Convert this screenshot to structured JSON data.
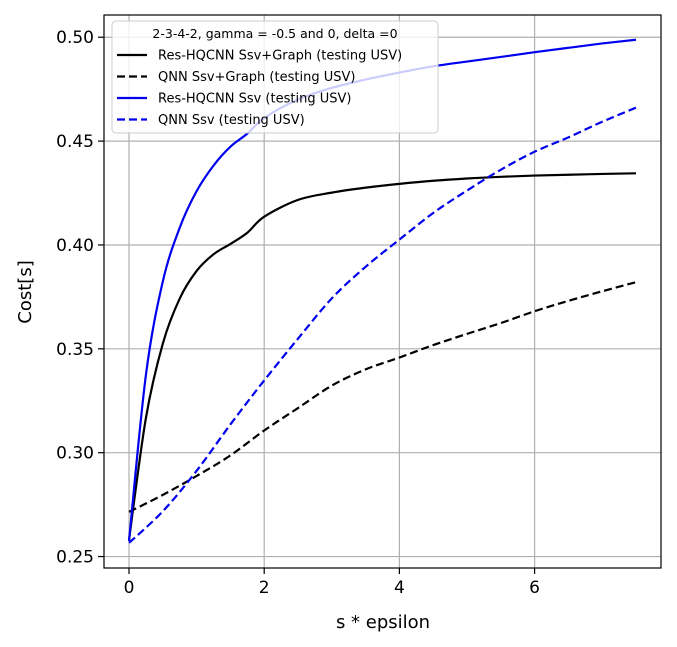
{
  "chart_data": {
    "type": "line",
    "xlabel": "s * epsilon",
    "ylabel": "Cost[s]",
    "xlim": [
      -0.37,
      7.87
    ],
    "ylim": [
      0.2445,
      0.5107
    ],
    "xticks": [
      0,
      2,
      4,
      6
    ],
    "xtick_labels": [
      "0",
      "2",
      "4",
      "6"
    ],
    "yticks": [
      0.25,
      0.3,
      0.35,
      0.4,
      0.45,
      0.5
    ],
    "ytick_labels": [
      "0.25",
      "0.30",
      "0.35",
      "0.40",
      "0.45",
      "0.50"
    ],
    "grid": true,
    "legend": {
      "title": "2-3-4-2, gamma = -0.5 and 0, delta =0",
      "placement": "upper-left"
    },
    "series": [
      {
        "name": "Res-HQCNN Ssv+Graph (testing USV)",
        "color": "#000000",
        "dash": "solid",
        "x": [
          0,
          0.25,
          0.5,
          0.75,
          1.0,
          1.25,
          1.5,
          1.75,
          2.0,
          2.5,
          3.0,
          3.5,
          4.0,
          4.5,
          5.0,
          5.5,
          6.0,
          6.5,
          7.0,
          7.5
        ],
        "y": [
          0.258,
          0.3167,
          0.3525,
          0.3742,
          0.3875,
          0.3955,
          0.4005,
          0.4059,
          0.4136,
          0.4217,
          0.4252,
          0.4276,
          0.4294,
          0.4309,
          0.432,
          0.4328,
          0.4334,
          0.4338,
          0.4342,
          0.4345
        ]
      },
      {
        "name": "QNN Ssv+Graph (testing USV)",
        "color": "#000000",
        "dash": "dashed",
        "x": [
          0,
          0.5,
          1.0,
          1.5,
          2.0,
          2.5,
          3.0,
          3.5,
          4.0,
          4.5,
          5.0,
          5.5,
          6.0,
          6.5,
          7.0,
          7.5
        ],
        "y": [
          0.2715,
          0.2797,
          0.2888,
          0.2987,
          0.3107,
          0.3215,
          0.3323,
          0.3401,
          0.3458,
          0.3518,
          0.3572,
          0.3624,
          0.3681,
          0.3731,
          0.3777,
          0.3821
        ]
      },
      {
        "name": "Res-HQCNN Ssv (testing USV)",
        "color": "#0000ee",
        "dash": "solid",
        "x": [
          0,
          0.25,
          0.5,
          0.75,
          1.0,
          1.25,
          1.5,
          1.75,
          2.0,
          2.5,
          3.0,
          3.5,
          4.0,
          4.5,
          5.0,
          5.5,
          6.0,
          6.5,
          7.0,
          7.5
        ],
        "y": [
          0.2575,
          0.3374,
          0.3824,
          0.4083,
          0.4259,
          0.4382,
          0.4473,
          0.4536,
          0.4611,
          0.47,
          0.4756,
          0.4796,
          0.483,
          0.486,
          0.4883,
          0.4905,
          0.4928,
          0.4949,
          0.497,
          0.4988
        ]
      },
      {
        "name": "QNN Ssv (testing USV)",
        "color": "#0000ee",
        "dash": "dashed",
        "x": [
          0,
          0.5,
          1.0,
          1.5,
          2.0,
          2.5,
          3.0,
          3.5,
          4.0,
          4.5,
          5.0,
          5.5,
          6.0,
          6.5,
          7.0,
          7.5
        ],
        "y": [
          0.2566,
          0.2718,
          0.2913,
          0.3136,
          0.3348,
          0.3549,
          0.3743,
          0.3895,
          0.4026,
          0.4154,
          0.4262,
          0.4362,
          0.4449,
          0.4518,
          0.4593,
          0.4661
        ]
      }
    ]
  }
}
